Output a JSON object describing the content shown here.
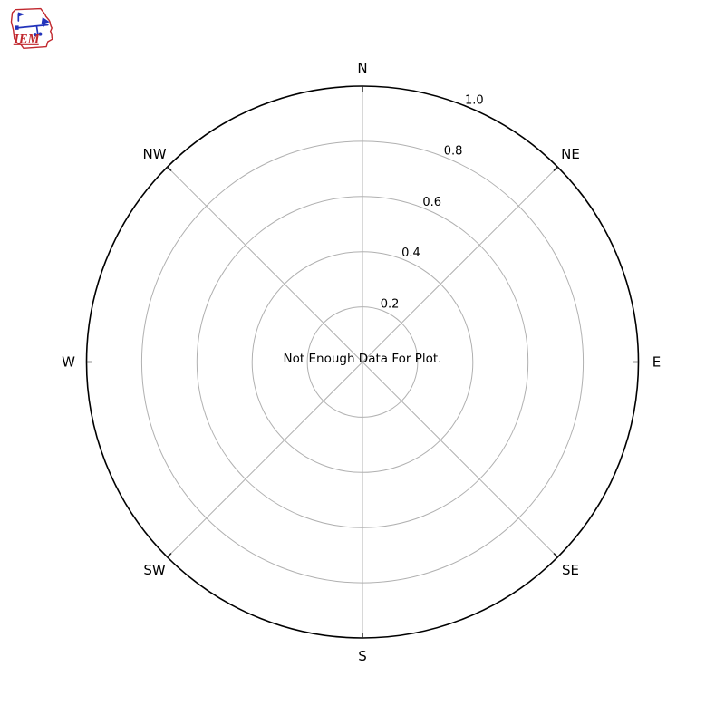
{
  "logo": {
    "text": "IEM",
    "outline_color": "#c1272d",
    "instrument_color": "#2233bb",
    "text_color": "#c1272d"
  },
  "chart_data": {
    "type": "polar-windrose",
    "title": "",
    "direction_labels": [
      "N",
      "NE",
      "E",
      "SE",
      "S",
      "SW",
      "W",
      "NW"
    ],
    "radial_ticks": [
      0.2,
      0.4,
      0.6,
      0.8,
      1.0
    ],
    "radial_tick_labels": [
      "0.2",
      "0.4",
      "0.6",
      "0.8",
      "1.0"
    ],
    "radial_axis_angle_deg": 22.5,
    "rlim": [
      0,
      1.0
    ],
    "grid": true,
    "legend": null,
    "series": [],
    "annotation": "Not Enough Data For Plot.",
    "colors": {
      "spine": "#000000",
      "grid": "#b0b0b0",
      "tick": "#222222",
      "text": "#000000",
      "background": "#ffffff"
    }
  }
}
